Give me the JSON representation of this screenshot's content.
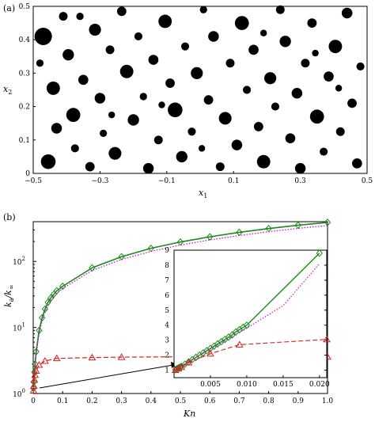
{
  "panel_a": {
    "label": "(a)",
    "xlabel": "x",
    "xlabel_sub": "1",
    "ylabel": "x",
    "ylabel_sub": "2"
  },
  "panel_b": {
    "label": "(b)",
    "xlabel": "Kn",
    "ylabel_main": "k",
    "ylabel_sub": "a",
    "ylabel_den": "/k",
    "ylabel_den_sub": "∞"
  },
  "chart_data": [
    {
      "type": "scatter",
      "marker": "filled-circle",
      "color": "#000000",
      "xlim": [
        -0.5,
        0.5
      ],
      "ylim": [
        0,
        0.5
      ],
      "xticks": [
        -0.5,
        -0.3,
        -0.1,
        0.1,
        0.3,
        0.5
      ],
      "xtick_labels": [
        "−0.5",
        "−0.3",
        "−0.1",
        "0.1",
        "0.3",
        "0.5"
      ],
      "yticks": [
        0,
        0.1,
        0.2,
        0.3,
        0.4,
        0.5
      ],
      "ytick_labels": [
        "0",
        "0.1",
        "0.2",
        "0.3",
        "0.4",
        "0.5"
      ],
      "points": [
        {
          "x": -0.455,
          "y": 0.035,
          "r": 0.022
        },
        {
          "x": -0.47,
          "y": 0.41,
          "r": 0.026
        },
        {
          "x": -0.44,
          "y": 0.255,
          "r": 0.02
        },
        {
          "x": -0.43,
          "y": 0.135,
          "r": 0.016
        },
        {
          "x": -0.41,
          "y": 0.47,
          "r": 0.013
        },
        {
          "x": -0.395,
          "y": 0.355,
          "r": 0.017
        },
        {
          "x": -0.38,
          "y": 0.175,
          "r": 0.021
        },
        {
          "x": -0.375,
          "y": 0.075,
          "r": 0.012
        },
        {
          "x": -0.35,
          "y": 0.28,
          "r": 0.015
        },
        {
          "x": -0.33,
          "y": 0.02,
          "r": 0.014
        },
        {
          "x": -0.315,
          "y": 0.43,
          "r": 0.018
        },
        {
          "x": -0.3,
          "y": 0.225,
          "r": 0.016
        },
        {
          "x": -0.29,
          "y": 0.12,
          "r": 0.011
        },
        {
          "x": -0.27,
          "y": 0.37,
          "r": 0.013
        },
        {
          "x": -0.255,
          "y": 0.06,
          "r": 0.019
        },
        {
          "x": -0.235,
          "y": 0.485,
          "r": 0.014
        },
        {
          "x": -0.22,
          "y": 0.305,
          "r": 0.02
        },
        {
          "x": -0.2,
          "y": 0.16,
          "r": 0.017
        },
        {
          "x": -0.185,
          "y": 0.41,
          "r": 0.012
        },
        {
          "x": -0.17,
          "y": 0.23,
          "r": 0.011
        },
        {
          "x": -0.155,
          "y": 0.015,
          "r": 0.016
        },
        {
          "x": -0.14,
          "y": 0.34,
          "r": 0.015
        },
        {
          "x": -0.125,
          "y": 0.1,
          "r": 0.013
        },
        {
          "x": -0.105,
          "y": 0.455,
          "r": 0.02
        },
        {
          "x": -0.09,
          "y": 0.27,
          "r": 0.014
        },
        {
          "x": -0.075,
          "y": 0.19,
          "r": 0.022
        },
        {
          "x": -0.055,
          "y": 0.05,
          "r": 0.017
        },
        {
          "x": -0.045,
          "y": 0.38,
          "r": 0.012
        },
        {
          "x": -0.025,
          "y": 0.125,
          "r": 0.012
        },
        {
          "x": -0.01,
          "y": 0.3,
          "r": 0.018
        },
        {
          "x": 0.01,
          "y": 0.49,
          "r": 0.011
        },
        {
          "x": 0.025,
          "y": 0.22,
          "r": 0.014
        },
        {
          "x": 0.04,
          "y": 0.41,
          "r": 0.016
        },
        {
          "x": 0.06,
          "y": 0.02,
          "r": 0.013
        },
        {
          "x": 0.075,
          "y": 0.165,
          "r": 0.019
        },
        {
          "x": 0.09,
          "y": 0.33,
          "r": 0.013
        },
        {
          "x": 0.11,
          "y": 0.085,
          "r": 0.016
        },
        {
          "x": 0.125,
          "y": 0.45,
          "r": 0.021
        },
        {
          "x": 0.14,
          "y": 0.25,
          "r": 0.012
        },
        {
          "x": 0.16,
          "y": 0.37,
          "r": 0.015
        },
        {
          "x": 0.175,
          "y": 0.14,
          "r": 0.014
        },
        {
          "x": 0.19,
          "y": 0.035,
          "r": 0.02
        },
        {
          "x": 0.21,
          "y": 0.285,
          "r": 0.018
        },
        {
          "x": 0.225,
          "y": 0.2,
          "r": 0.012
        },
        {
          "x": 0.24,
          "y": 0.49,
          "r": 0.013
        },
        {
          "x": 0.255,
          "y": 0.395,
          "r": 0.017
        },
        {
          "x": 0.27,
          "y": 0.105,
          "r": 0.015
        },
        {
          "x": 0.29,
          "y": 0.24,
          "r": 0.016
        },
        {
          "x": 0.3,
          "y": 0.015,
          "r": 0.016
        },
        {
          "x": 0.315,
          "y": 0.33,
          "r": 0.013
        },
        {
          "x": 0.335,
          "y": 0.45,
          "r": 0.014
        },
        {
          "x": 0.35,
          "y": 0.17,
          "r": 0.021
        },
        {
          "x": 0.37,
          "y": 0.065,
          "r": 0.012
        },
        {
          "x": 0.385,
          "y": 0.29,
          "r": 0.015
        },
        {
          "x": 0.405,
          "y": 0.38,
          "r": 0.02
        },
        {
          "x": 0.42,
          "y": 0.125,
          "r": 0.013
        },
        {
          "x": 0.44,
          "y": 0.48,
          "r": 0.016
        },
        {
          "x": 0.455,
          "y": 0.21,
          "r": 0.014
        },
        {
          "x": 0.47,
          "y": 0.03,
          "r": 0.015
        },
        {
          "x": 0.48,
          "y": 0.32,
          "r": 0.012
        },
        {
          "x": -0.48,
          "y": 0.33,
          "r": 0.011
        },
        {
          "x": -0.36,
          "y": 0.47,
          "r": 0.011
        },
        {
          "x": -0.265,
          "y": 0.175,
          "r": 0.01
        },
        {
          "x": -0.115,
          "y": 0.205,
          "r": 0.01
        },
        {
          "x": 0.005,
          "y": 0.075,
          "r": 0.01
        },
        {
          "x": 0.19,
          "y": 0.42,
          "r": 0.01
        },
        {
          "x": 0.345,
          "y": 0.36,
          "r": 0.01
        },
        {
          "x": 0.415,
          "y": 0.255,
          "r": 0.01
        }
      ]
    },
    {
      "type": "line",
      "xlim": [
        0,
        1.0
      ],
      "ylim": [
        1,
        400
      ],
      "yscale": "log",
      "xticks": [
        0,
        0.1,
        0.2,
        0.3,
        0.4,
        0.5,
        0.6,
        0.7,
        0.8,
        0.9,
        1.0
      ],
      "xtick_labels": [
        "0",
        "0.1",
        "0.2",
        "0.3",
        "0.4",
        "0.5",
        "0.6",
        "0.7",
        "0.8",
        "0.9",
        "1.0"
      ],
      "yticks": [
        1,
        10,
        100
      ],
      "ytick_labels": [
        "10",
        "10",
        "10"
      ],
      "ytick_exponents": [
        "0",
        "1",
        "2"
      ],
      "series": [
        {
          "style": "solid",
          "color": "#1a8a1a",
          "marker": "diamond",
          "x": [
            0.001,
            0.002,
            0.004,
            0.006,
            0.01,
            0.02,
            0.03,
            0.04,
            0.05,
            0.06,
            0.07,
            0.08,
            0.1,
            0.2,
            0.3,
            0.4,
            0.5,
            0.6,
            0.7,
            0.8,
            0.9,
            1.0
          ],
          "y": [
            1.2,
            1.5,
            2.1,
            2.8,
            4.3,
            9.0,
            14,
            19,
            24,
            28,
            32,
            36,
            42,
            80,
            118,
            158,
            197,
            236,
            276,
            315,
            354,
            390
          ]
        },
        {
          "style": "dotted",
          "color": "#cc00cc",
          "marker": "none",
          "x": [
            0.001,
            0.002,
            0.004,
            0.006,
            0.01,
            0.02,
            0.03,
            0.04,
            0.05,
            0.06,
            0.07,
            0.08,
            0.1,
            0.2,
            0.3,
            0.4,
            0.5,
            0.6,
            0.7,
            0.8,
            0.9,
            1.0
          ],
          "y": [
            1.15,
            1.4,
            1.95,
            2.55,
            3.9,
            8.0,
            12.5,
            17,
            21.5,
            25.5,
            29,
            33,
            39,
            73,
            107,
            142,
            177,
            212,
            247,
            282,
            317,
            350
          ]
        },
        {
          "style": "dashed",
          "color": "#d62020",
          "marker": "triangle",
          "x": [
            0.001,
            0.002,
            0.004,
            0.006,
            0.01,
            0.02,
            0.04,
            0.08,
            0.2,
            0.3,
            0.5,
            0.7,
            1.0
          ],
          "y": [
            1.1,
            1.3,
            1.6,
            1.9,
            2.2,
            2.7,
            3.1,
            3.4,
            3.5,
            3.55,
            3.6,
            3.6,
            3.6
          ]
        }
      ]
    },
    {
      "type": "line",
      "inset": true,
      "xlim": [
        0,
        0.021
      ],
      "ylim": [
        0.5,
        9
      ],
      "xticks": [
        0.005,
        0.01,
        0.015,
        0.02
      ],
      "xtick_labels": [
        "0.005",
        "0.010",
        "0.015",
        "0.020"
      ],
      "yticks": [
        1,
        2,
        3,
        4,
        5,
        6,
        7,
        8,
        9
      ],
      "ytick_labels": [
        "1",
        "2",
        "3",
        "4",
        "5",
        "6",
        "7",
        "8",
        "9"
      ],
      "series": [
        {
          "style": "solid",
          "color": "#1a8a1a",
          "marker": "diamond",
          "x": [
            0.0002,
            0.0004,
            0.0006,
            0.0008,
            0.001,
            0.0015,
            0.002,
            0.0025,
            0.003,
            0.0035,
            0.004,
            0.0045,
            0.005,
            0.0055,
            0.006,
            0.0065,
            0.007,
            0.0075,
            0.008,
            0.0085,
            0.009,
            0.0095,
            0.01,
            0.02
          ],
          "y": [
            1.05,
            1.1,
            1.15,
            1.2,
            1.25,
            1.4,
            1.55,
            1.7,
            1.85,
            2.0,
            2.15,
            2.3,
            2.45,
            2.6,
            2.75,
            2.9,
            3.05,
            3.2,
            3.35,
            3.55,
            3.7,
            3.85,
            4.0,
            8.8
          ]
        },
        {
          "style": "dotted",
          "color": "#cc00cc",
          "marker": "none",
          "x": [
            0.0,
            0.005,
            0.01,
            0.015,
            0.02
          ],
          "y": [
            1.0,
            2.4,
            3.8,
            5.3,
            8.1
          ]
        },
        {
          "style": "dashed",
          "color": "#d62020",
          "marker": "triangle",
          "x": [
            0.0002,
            0.0006,
            0.001,
            0.002,
            0.005,
            0.009,
            0.021
          ],
          "y": [
            1.0,
            1.1,
            1.2,
            1.5,
            2.1,
            2.7,
            3.05
          ]
        }
      ]
    }
  ]
}
